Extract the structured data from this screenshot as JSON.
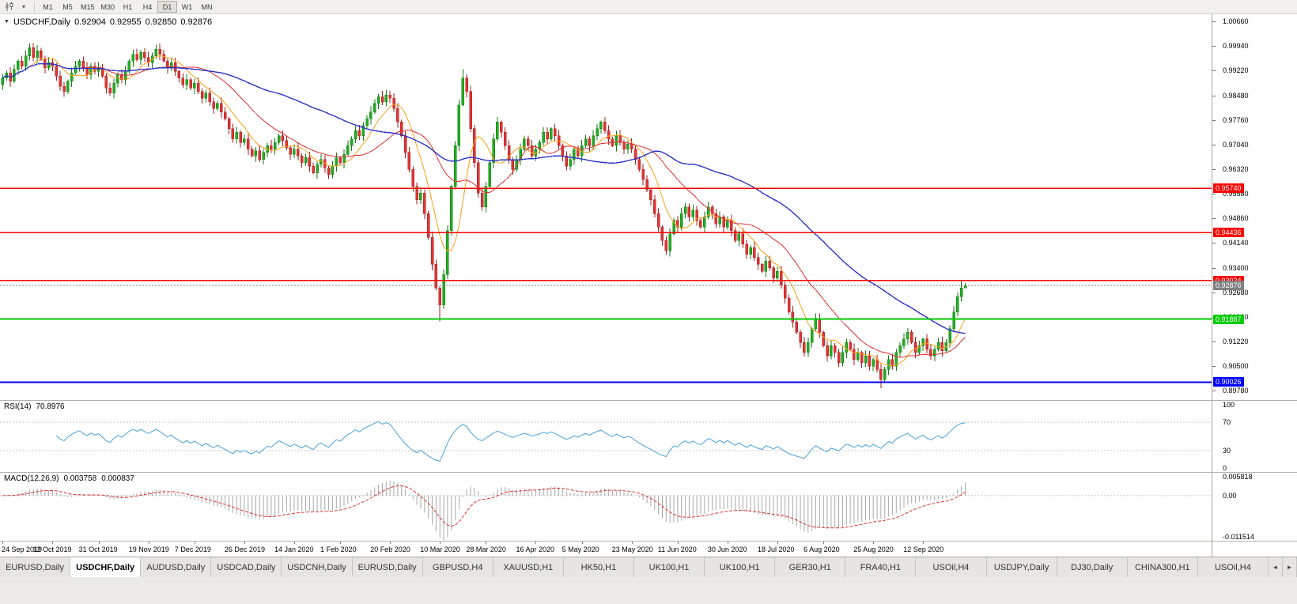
{
  "icons": {
    "collapse": "▼",
    "dropdown": "▾",
    "scroll_left": "◄",
    "scroll_right": "►"
  },
  "colors": {
    "bull": "#22ad22",
    "bull_border": "#137d13",
    "bear": "#e23434",
    "bear_border": "#a81f1f",
    "ma_fast": "#ff9f1a",
    "ma_mid": "#e03131",
    "ma_slow": "#2d35c8",
    "rsi_line": "#4aa0dc",
    "macd_hist": "#a8a8a8",
    "macd_signal": "#e03131",
    "current_price": "#808080",
    "level_grid": "#c4c4c4"
  },
  "toolbar": {
    "timeframes": [
      "M1",
      "M5",
      "M15",
      "M30",
      "H1",
      "H4",
      "D1",
      "W1",
      "MN"
    ],
    "active": "D1"
  },
  "chart": {
    "title": "USDCHF,Daily",
    "ohlc": {
      "open": "0.92904",
      "high": "0.92955",
      "low": "0.92850",
      "close": "0.92876"
    }
  },
  "chart_data": {
    "type": "candlestick",
    "symbol": "USDCHF",
    "period": "Daily",
    "first_open": 0.988,
    "closes": [
      0.99,
      0.9915,
      0.989,
      0.9925,
      0.995,
      0.9935,
      0.9965,
      0.999,
      0.996,
      0.998,
      0.9955,
      0.993,
      0.9945,
      0.9935,
      0.9905,
      0.9875,
      0.986,
      0.989,
      0.9915,
      0.9935,
      0.995,
      0.993,
      0.991,
      0.9935,
      0.992,
      0.993,
      0.9905,
      0.987,
      0.9855,
      0.9885,
      0.991,
      0.9895,
      0.992,
      0.995,
      0.997,
      0.9955,
      0.9975,
      0.996,
      0.9945,
      0.9965,
      0.9985,
      0.997,
      0.995,
      0.993,
      0.9945,
      0.992,
      0.99,
      0.988,
      0.9895,
      0.987,
      0.9885,
      0.986,
      0.984,
      0.9855,
      0.983,
      0.981,
      0.9825,
      0.98,
      0.978,
      0.975,
      0.972,
      0.974,
      0.971,
      0.972,
      0.969,
      0.967,
      0.9685,
      0.966,
      0.968,
      0.97,
      0.969,
      0.971,
      0.973,
      0.9715,
      0.9695,
      0.9675,
      0.969,
      0.967,
      0.965,
      0.9665,
      0.964,
      0.962,
      0.9645,
      0.966,
      0.9635,
      0.9615,
      0.964,
      0.9665,
      0.965,
      0.9675,
      0.97,
      0.972,
      0.9745,
      0.973,
      0.976,
      0.978,
      0.98,
      0.9825,
      0.9845,
      0.983,
      0.985,
      0.984,
      0.981,
      0.977,
      0.973,
      0.968,
      0.963,
      0.958,
      0.954,
      0.956,
      0.95,
      0.943,
      0.935,
      0.928,
      0.923,
      0.932,
      0.945,
      0.958,
      0.97,
      0.982,
      0.99,
      0.986,
      0.975,
      0.965,
      0.956,
      0.952,
      0.958,
      0.965,
      0.972,
      0.977,
      0.974,
      0.97,
      0.966,
      0.963,
      0.966,
      0.969,
      0.972,
      0.97,
      0.967,
      0.969,
      0.971,
      0.974,
      0.972,
      0.975,
      0.973,
      0.97,
      0.967,
      0.964,
      0.966,
      0.969,
      0.967,
      0.97,
      0.972,
      0.97,
      0.973,
      0.975,
      0.977,
      0.9745,
      0.972,
      0.97,
      0.973,
      0.971,
      0.969,
      0.9705,
      0.969,
      0.966,
      0.963,
      0.96,
      0.957,
      0.954,
      0.95,
      0.946,
      0.942,
      0.939,
      0.944,
      0.948,
      0.946,
      0.95,
      0.952,
      0.949,
      0.951,
      0.948,
      0.946,
      0.949,
      0.952,
      0.95,
      0.947,
      0.949,
      0.946,
      0.948,
      0.945,
      0.942,
      0.944,
      0.941,
      0.938,
      0.94,
      0.937,
      0.935,
      0.933,
      0.936,
      0.934,
      0.931,
      0.933,
      0.929,
      0.925,
      0.921,
      0.918,
      0.915,
      0.912,
      0.909,
      0.912,
      0.916,
      0.919,
      0.915,
      0.911,
      0.908,
      0.911,
      0.909,
      0.906,
      0.909,
      0.912,
      0.91,
      0.907,
      0.909,
      0.906,
      0.908,
      0.905,
      0.907,
      0.904,
      0.901,
      0.904,
      0.907,
      0.905,
      0.909,
      0.911,
      0.913,
      0.915,
      0.912,
      0.909,
      0.911,
      0.913,
      0.91,
      0.908,
      0.91,
      0.912,
      0.9095,
      0.912,
      0.916,
      0.921,
      0.9255,
      0.928,
      0.92876
    ],
    "wick_overrides": {
      "7": {
        "high": 1.0002
      },
      "40": {
        "high": 0.9998
      },
      "101": {
        "high": 0.9862
      },
      "114": {
        "low": 0.9182
      },
      "120": {
        "high": 0.9926
      },
      "173": {
        "low": 0.9378
      },
      "229": {
        "low": 0.8985
      },
      "250": {
        "high": 0.9302
      },
      "251": {
        "high": 0.92955,
        "low": 0.9285
      }
    },
    "x_ticks": [
      {
        "index": 0,
        "label": "24 Sep 2019"
      },
      {
        "index": 13,
        "label": "12 Oct 2019"
      },
      {
        "index": 25,
        "label": "31 Oct 2019"
      },
      {
        "index": 38,
        "label": "19 Nov 2019"
      },
      {
        "index": 50,
        "label": "7 Dec 2019"
      },
      {
        "index": 63,
        "label": "26 Dec 2019"
      },
      {
        "index": 76,
        "label": "14 Jan 2020"
      },
      {
        "index": 88,
        "label": "1 Feb 2020"
      },
      {
        "index": 101,
        "label": "20 Feb 2020"
      },
      {
        "index": 114,
        "label": "10 Mar 2020"
      },
      {
        "index": 126,
        "label": "28 Mar 2020"
      },
      {
        "index": 139,
        "label": "16 Apr 2020"
      },
      {
        "index": 151,
        "label": "5 May 2020"
      },
      {
        "index": 164,
        "label": "23 May 2020"
      },
      {
        "index": 176,
        "label": "11 Jun 2020"
      },
      {
        "index": 189,
        "label": "30 Jun 2020"
      },
      {
        "index": 202,
        "label": "18 Jul 2020"
      },
      {
        "index": 214,
        "label": "6 Aug 2020"
      },
      {
        "index": 227,
        "label": "25 Aug 2020"
      },
      {
        "index": 240,
        "label": "12 Sep 2020"
      }
    ],
    "price_axis": {
      "labels": [
        "1.00660",
        "0.99940",
        "0.99220",
        "0.98480",
        "0.97760",
        "0.97040",
        "0.96320",
        "0.95580",
        "0.94860",
        "0.94140",
        "0.93400",
        "0.92680",
        "0.91960",
        "0.91220",
        "0.90500",
        "0.89780"
      ],
      "min": 0.895,
      "max": 1.0088
    },
    "hlines": [
      {
        "value": 0.9574,
        "label": "0.95740",
        "color": "#ff0000",
        "width": 1.4
      },
      {
        "value": 0.94436,
        "label": "0.94436",
        "color": "#ff0000",
        "width": 1.4
      },
      {
        "value": 0.93024,
        "label": "0.93024",
        "color": "#ff0000",
        "width": 1.4
      },
      {
        "value": 0.91887,
        "label": "0.91887",
        "color": "#00cc00",
        "width": 2
      },
      {
        "value": 0.90026,
        "label": "0.90026",
        "color": "#0000ff",
        "width": 2
      }
    ],
    "current_price": {
      "value": 0.92876,
      "label": "0.92876"
    },
    "indicators": {
      "ma": {
        "periods": {
          "fast": 8,
          "mid": 21,
          "slow": 55
        }
      },
      "rsi": {
        "label": "RSI(14)",
        "value": "70.8976",
        "period": 14,
        "scale_labels": [
          "100",
          "70",
          "30",
          "0"
        ],
        "levels": [
          70,
          30
        ]
      },
      "macd": {
        "label": "MACD(12,26,9)",
        "main_value": "0.003758",
        "signal_value": "0.000837",
        "fast": 12,
        "slow": 26,
        "signal": 9,
        "scale_labels": [
          "0.005818",
          "0.00",
          "-0.011514"
        ],
        "scale_max": 0.005818,
        "scale_min": -0.011514
      }
    }
  },
  "tabs": {
    "items": [
      {
        "label": "EURUSD,Daily",
        "active": false
      },
      {
        "label": "USDCHF,Daily",
        "active": true
      },
      {
        "label": "AUDUSD,Daily",
        "active": false
      },
      {
        "label": "USDCAD,Daily",
        "active": false
      },
      {
        "label": "USDCNH,Daily",
        "active": false
      },
      {
        "label": "EURUSD,Daily",
        "active": false
      },
      {
        "label": "GBPUSD,H4",
        "active": false
      },
      {
        "label": "XAUUSD,H1",
        "active": false
      },
      {
        "label": "HK50,H1",
        "active": false
      },
      {
        "label": "UK100,H1",
        "active": false
      },
      {
        "label": "UK100,H1",
        "active": false
      },
      {
        "label": "GER30,H1",
        "active": false
      },
      {
        "label": "FRA40,H1",
        "active": false
      },
      {
        "label": "USOil,H4",
        "active": false
      },
      {
        "label": "USDJPY,Daily",
        "active": false
      },
      {
        "label": "DJ30,Daily",
        "active": false
      },
      {
        "label": "CHINA300,H1",
        "active": false
      },
      {
        "label": "USOil,H4",
        "active": false
      }
    ]
  }
}
